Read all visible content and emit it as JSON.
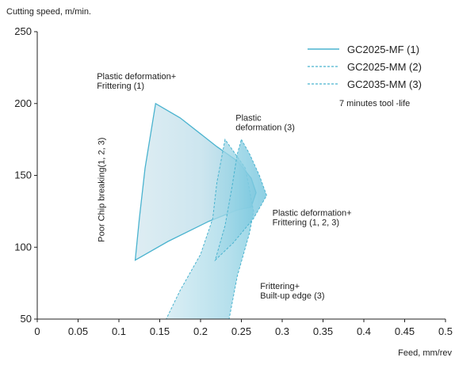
{
  "chart_data": {
    "type": "area",
    "xlabel": "Feed, mm/rev",
    "ylabel": "Cutting speed, m/min.",
    "xlim": [
      0,
      0.5
    ],
    "ylim": [
      50,
      250
    ],
    "x_ticks": [
      "0",
      "0.05",
      "0.1",
      "0.15",
      "0.2",
      "0.25",
      "0.3",
      "0.35",
      "0.4",
      "0.45",
      "0.5"
    ],
    "y_ticks": [
      "50",
      "100",
      "150",
      "200",
      "250"
    ],
    "grid": false,
    "legend_position": "top-right",
    "legend_note": "7 minutes tool -life",
    "colors": {
      "fill": "#bcdfea",
      "edge": "#4ab3cf",
      "axis": "#222222"
    },
    "series": [
      {
        "name": "GC2025-MF (1)",
        "line_style": "solid",
        "points": [
          [
            0.145,
            200
          ],
          [
            0.175,
            190
          ],
          [
            0.22,
            170
          ],
          [
            0.245,
            160
          ],
          [
            0.262,
            148
          ],
          [
            0.268,
            138
          ],
          [
            0.262,
            128
          ],
          [
            0.245,
            126
          ],
          [
            0.21,
            118
          ],
          [
            0.16,
            104
          ],
          [
            0.12,
            91
          ],
          [
            0.125,
            120
          ],
          [
            0.132,
            155
          ],
          [
            0.145,
            200
          ]
        ]
      },
      {
        "name": "GC2025-MM (2)",
        "line_style": "dashed",
        "points": [
          [
            0.23,
            175
          ],
          [
            0.225,
            160
          ],
          [
            0.22,
            145
          ],
          [
            0.215,
            120
          ],
          [
            0.2,
            95
          ],
          [
            0.175,
            70
          ],
          [
            0.158,
            50
          ],
          [
            0.235,
            50
          ],
          [
            0.245,
            80
          ],
          [
            0.26,
            110
          ],
          [
            0.265,
            125
          ],
          [
            0.255,
            155
          ],
          [
            0.23,
            175
          ]
        ]
      },
      {
        "name": "GC2035-MM (3)",
        "line_style": "dashed",
        "points": [
          [
            0.25,
            175
          ],
          [
            0.26,
            165
          ],
          [
            0.272,
            150
          ],
          [
            0.281,
            136
          ],
          [
            0.265,
            120
          ],
          [
            0.24,
            103
          ],
          [
            0.218,
            91
          ],
          [
            0.23,
            115
          ],
          [
            0.238,
            140
          ],
          [
            0.245,
            165
          ],
          [
            0.25,
            175
          ]
        ]
      }
    ],
    "annotations": [
      {
        "lines": [
          "Plastic deformation+",
          "Frittering (1)"
        ],
        "x": 0.073,
        "y": 217
      },
      {
        "lines": [
          "Plastic",
          "deformation (3)"
        ],
        "x": 0.243,
        "y": 188
      },
      {
        "lines": [
          "Plastic deformation+",
          "Frittering (1, 2, 3)"
        ],
        "x": 0.288,
        "y": 122
      },
      {
        "lines": [
          "Frittering+",
          "Built-up edge (3)"
        ],
        "x": 0.273,
        "y": 71
      },
      {
        "lines": [
          "Poor Chip breaking(1, 2, 3)"
        ],
        "x": 0.082,
        "y": 140,
        "rotate": -90
      }
    ]
  }
}
